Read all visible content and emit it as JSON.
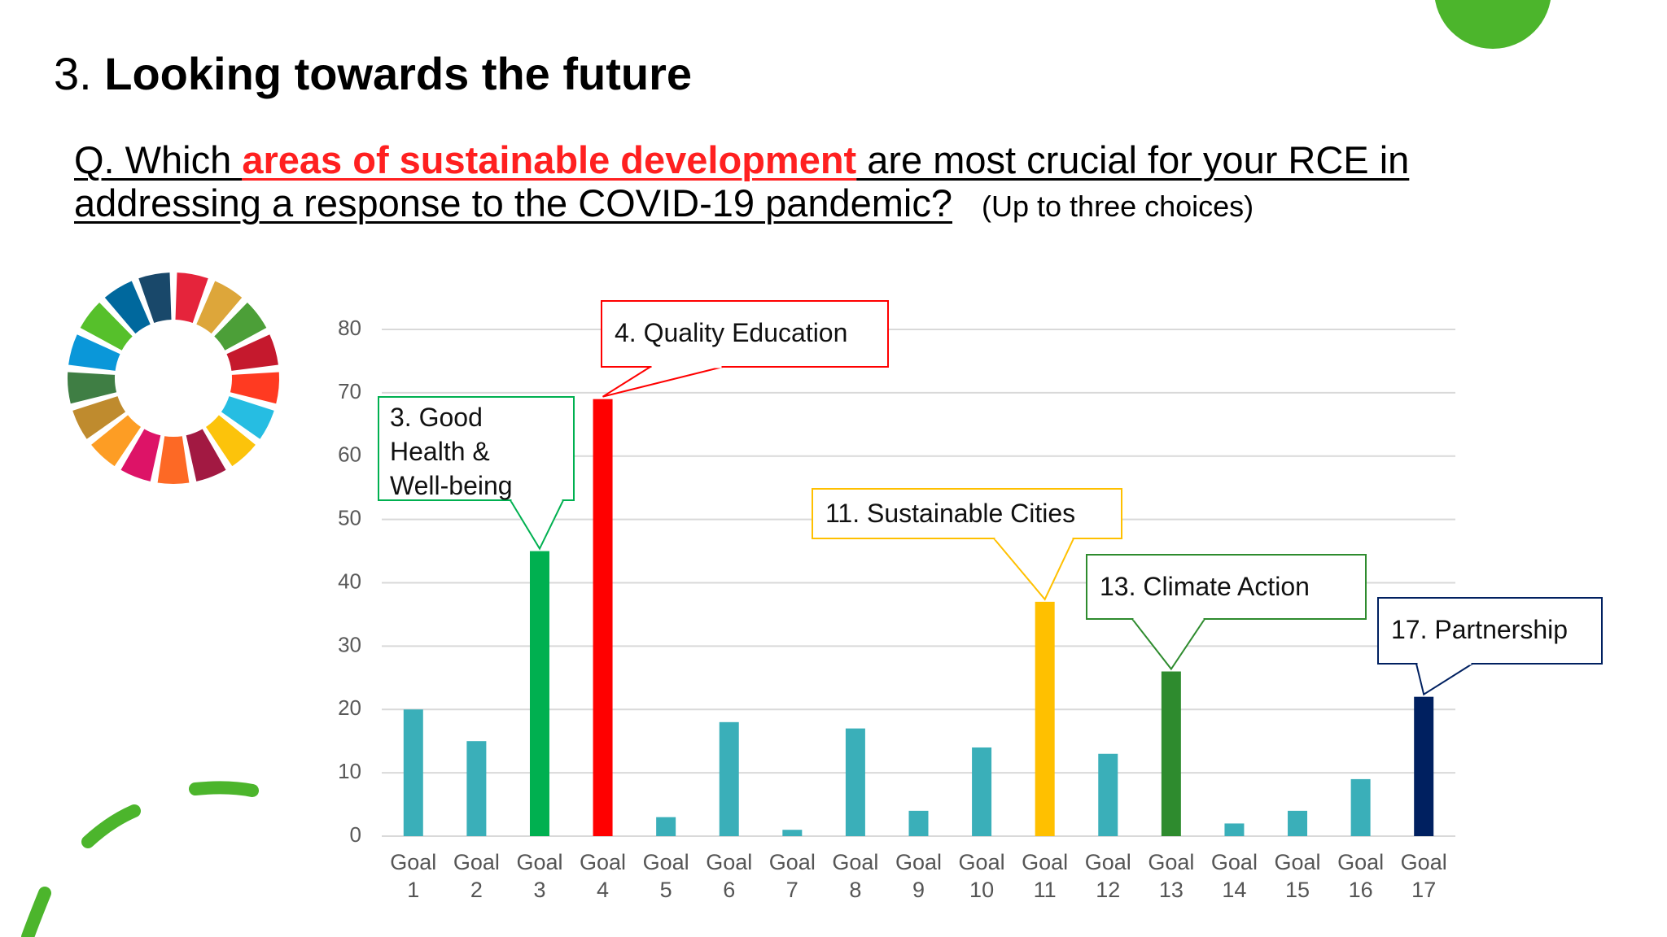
{
  "slide": {
    "title_number": "3.",
    "title": "Looking towards the future",
    "question": {
      "prefix": "Q. Which ",
      "highlight": "areas of sustainable development",
      "suffix": " are most crucial for your RCE in addressing a response to the COVID-19 pandemic?",
      "note": "(Up to three choices)"
    }
  },
  "chart_data": {
    "type": "bar",
    "categories": [
      "Goal 1",
      "Goal 2",
      "Goal 3",
      "Goal 4",
      "Goal 5",
      "Goal 6",
      "Goal 7",
      "Goal 8",
      "Goal 9",
      "Goal 10",
      "Goal 11",
      "Goal 12",
      "Goal 13",
      "Goal 14",
      "Goal 15",
      "Goal 16",
      "Goal 17"
    ],
    "values": [
      20,
      15,
      45,
      69,
      3,
      18,
      1,
      17,
      4,
      14,
      37,
      13,
      26,
      2,
      4,
      9,
      22
    ],
    "colors": [
      "#3aafb9",
      "#3aafb9",
      "#00b050",
      "#ff0000",
      "#3aafb9",
      "#3aafb9",
      "#3aafb9",
      "#3aafb9",
      "#3aafb9",
      "#3aafb9",
      "#ffc000",
      "#3aafb9",
      "#2e8b2e",
      "#3aafb9",
      "#3aafb9",
      "#3aafb9",
      "#002060"
    ],
    "ylim": [
      0,
      80
    ],
    "yticks": [
      0,
      10,
      20,
      30,
      40,
      50,
      60,
      70,
      80
    ],
    "grid": true,
    "annotations": [
      {
        "text": "3. Good Health & Well-being",
        "color": "#00b050"
      },
      {
        "text": "4. Quality Education",
        "color": "#ff0000"
      },
      {
        "text": "11. Sustainable Cities",
        "color": "#ffc000"
      },
      {
        "text": "13. Climate Action",
        "color": "#2e8b2e"
      },
      {
        "text": "17. Partnership",
        "color": "#002060"
      }
    ]
  }
}
